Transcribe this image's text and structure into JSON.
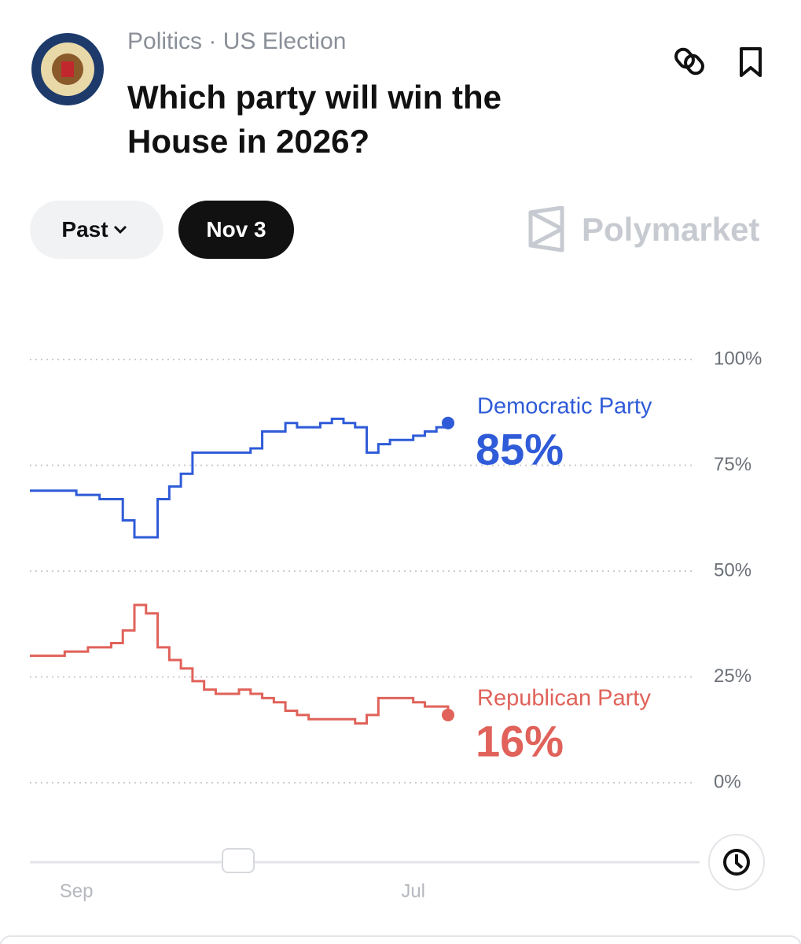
{
  "header": {
    "category": "Politics",
    "subcategory": "US Election",
    "title": "Which party will win the House in 2026?"
  },
  "controls": {
    "range": "Past",
    "date": "Nov 3",
    "brand": "Polymarket"
  },
  "chart_data": {
    "type": "line",
    "categories": [
      null,
      null,
      null,
      null,
      "Sep",
      null,
      null,
      null,
      null,
      null,
      null,
      null,
      null,
      null,
      null,
      null,
      null,
      null,
      null,
      null,
      null,
      null,
      null,
      null,
      null,
      null,
      null,
      null,
      null,
      null,
      null,
      null,
      null,
      "Jul",
      null,
      null,
      null
    ],
    "series": [
      {
        "name": "Democratic Party",
        "color": "#2f5bd8",
        "values": [
          69,
          69,
          69,
          69,
          68,
          68,
          67,
          67,
          62,
          58,
          58,
          67,
          70,
          73,
          78,
          78,
          78,
          78,
          78,
          79,
          83,
          83,
          85,
          84,
          84,
          85,
          86,
          85,
          84,
          78,
          80,
          81,
          81,
          82,
          83,
          84,
          85
        ],
        "value_labels": [
          null,
          null,
          null,
          null,
          null,
          null,
          null,
          null,
          null,
          null,
          null,
          null,
          null,
          null,
          null,
          null,
          null,
          null,
          null,
          null,
          null,
          null,
          null,
          null,
          null,
          null,
          null,
          null,
          null,
          null,
          null,
          null,
          null,
          null,
          null,
          null,
          "85%"
        ]
      },
      {
        "name": "Republican Party",
        "color": "#e0625a",
        "values": [
          30,
          30,
          30,
          31,
          31,
          32,
          32,
          33,
          36,
          42,
          40,
          32,
          29,
          27,
          24,
          22,
          21,
          21,
          22,
          21,
          20,
          19,
          17,
          16,
          15,
          15,
          15,
          15,
          14,
          16,
          20,
          20,
          20,
          19,
          18,
          18,
          16
        ],
        "value_labels": [
          null,
          null,
          null,
          null,
          null,
          null,
          null,
          null,
          null,
          null,
          null,
          null,
          null,
          null,
          null,
          null,
          null,
          null,
          null,
          null,
          null,
          null,
          null,
          null,
          null,
          null,
          null,
          null,
          null,
          null,
          null,
          null,
          null,
          null,
          null,
          null,
          "16%"
        ]
      }
    ],
    "ylim": [
      0,
      100
    ],
    "yticks": [
      {
        "value": 0,
        "label": "0%"
      },
      {
        "value": 25,
        "label": "25%"
      },
      {
        "value": 50,
        "label": "50%"
      },
      {
        "value": 75,
        "label": "75%"
      },
      {
        "value": 100,
        "label": "100%"
      }
    ],
    "grid": true
  }
}
